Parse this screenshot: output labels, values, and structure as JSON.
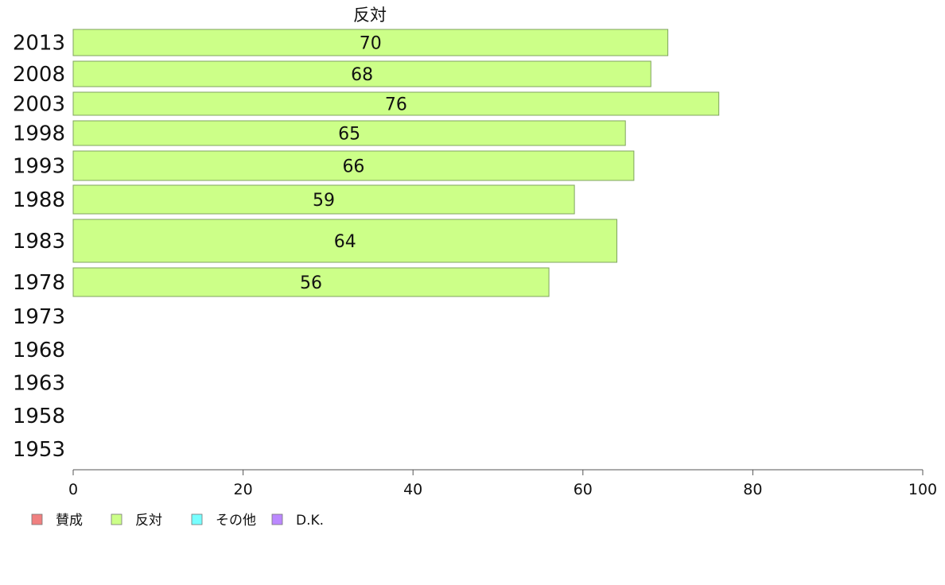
{
  "chart_data": {
    "type": "bar",
    "orientation": "horizontal",
    "title": "反対",
    "categories": [
      "2013",
      "2008",
      "2003",
      "1998",
      "1993",
      "1988",
      "1983",
      "1978",
      "1973",
      "1968",
      "1963",
      "1958",
      "1953"
    ],
    "series": [
      {
        "name": "反対",
        "color": "#ccff88",
        "values": [
          70,
          68,
          76,
          65,
          66,
          59,
          64,
          56,
          null,
          null,
          null,
          null,
          null
        ]
      }
    ],
    "xlim": [
      0,
      100
    ],
    "xticks": [
      0,
      20,
      40,
      60,
      80,
      100
    ],
    "grid": false,
    "legend": {
      "position": "bottom-left",
      "items": [
        {
          "label": "賛成",
          "color": "#f08080"
        },
        {
          "label": "反対",
          "color": "#ccff88"
        },
        {
          "label": "その他",
          "color": "#77ffff"
        },
        {
          "label": "D.K.",
          "color": "#bb88ff"
        }
      ]
    }
  }
}
